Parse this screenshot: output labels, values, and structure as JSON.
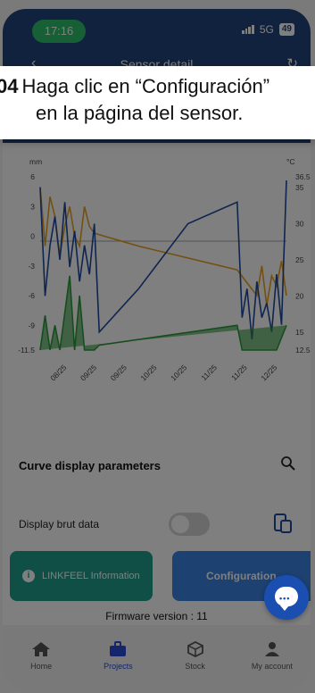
{
  "status_bar": {
    "time": "17:16",
    "network": "5G",
    "battery": "49"
  },
  "header": {
    "title": "Sensor detail"
  },
  "callout": {
    "step": "04",
    "text_line1": "Haga clic en “Configuración”",
    "text_line2": "en la página del sensor."
  },
  "chart_data": {
    "type": "line",
    "left_axis_unit": "mm",
    "right_axis_unit": "°C",
    "left_ticks": [
      "6",
      "3",
      "0",
      "-3",
      "-6",
      "-9",
      "-11.5"
    ],
    "right_ticks": [
      "36.5",
      "35",
      "30",
      "25",
      "20",
      "15",
      "12.5"
    ],
    "x_ticks": [
      "08/25",
      "09/25",
      "09/25",
      "10/25",
      "10/25",
      "11/25",
      "11/25",
      "12/25"
    ],
    "ylim_left": [
      -11.5,
      6
    ],
    "ylim_right": [
      12.5,
      36.5
    ],
    "series": [
      {
        "color": "#e8a020",
        "axis": "left",
        "values": [
          [
            0,
            5
          ],
          [
            1,
            -1
          ],
          [
            2,
            4
          ],
          [
            3,
            2
          ],
          [
            4,
            -2
          ],
          [
            5,
            1
          ],
          [
            6,
            3
          ],
          [
            7,
            0
          ],
          [
            8,
            -1
          ],
          [
            9,
            3
          ],
          [
            10,
            1
          ],
          [
            11,
            0.3
          ],
          [
            20,
            -1
          ],
          [
            40,
            -3.4
          ],
          [
            44,
            -6
          ],
          [
            45,
            -3
          ],
          [
            46,
            -7
          ],
          [
            47,
            -4
          ],
          [
            48,
            -5
          ],
          [
            49,
            -2.5
          ],
          [
            50,
            -6
          ]
        ]
      },
      {
        "color": "#1e4aa0",
        "axis": "right",
        "values": [
          [
            0,
            35
          ],
          [
            1,
            20
          ],
          [
            2,
            27
          ],
          [
            3,
            31
          ],
          [
            4,
            25
          ],
          [
            5,
            33
          ],
          [
            6,
            24
          ],
          [
            7,
            29
          ],
          [
            8,
            22
          ],
          [
            9,
            27
          ],
          [
            10,
            23
          ],
          [
            11,
            30
          ],
          [
            12,
            15
          ],
          [
            20,
            21
          ],
          [
            30,
            30
          ],
          [
            40,
            33
          ],
          [
            41,
            17
          ],
          [
            42,
            21
          ],
          [
            43,
            14
          ],
          [
            44,
            22
          ],
          [
            45,
            17
          ],
          [
            46,
            19
          ],
          [
            47,
            15
          ],
          [
            48,
            23
          ],
          [
            49,
            16
          ],
          [
            50,
            36
          ]
        ]
      },
      {
        "color": "#2f9a3c",
        "axis": "left",
        "values": [
          [
            0,
            -11.5
          ],
          [
            1,
            -8
          ],
          [
            2,
            -11.5
          ],
          [
            3,
            -9
          ],
          [
            4,
            -11.5
          ],
          [
            6,
            -4
          ],
          [
            7,
            -11.5
          ],
          [
            8,
            -6
          ],
          [
            9,
            -11.5
          ],
          [
            11,
            -11.5
          ],
          [
            12,
            -11
          ],
          [
            40,
            -9
          ],
          [
            41,
            -11.5
          ],
          [
            48,
            -11.5
          ],
          [
            50,
            -9
          ]
        ]
      }
    ]
  },
  "params": {
    "title": "Curve display parameters",
    "brut_label": "Display brut data"
  },
  "buttons": {
    "info_label": "LINKFEEL Information",
    "config_label": "Configuration"
  },
  "firmware": "Firmware version : 11",
  "tabs": [
    {
      "label": "Home",
      "icon": "home-icon"
    },
    {
      "label": "Projects",
      "icon": "briefcase-icon"
    },
    {
      "label": "Stock",
      "icon": "box-icon"
    },
    {
      "label": "My account",
      "icon": "user-icon"
    }
  ]
}
